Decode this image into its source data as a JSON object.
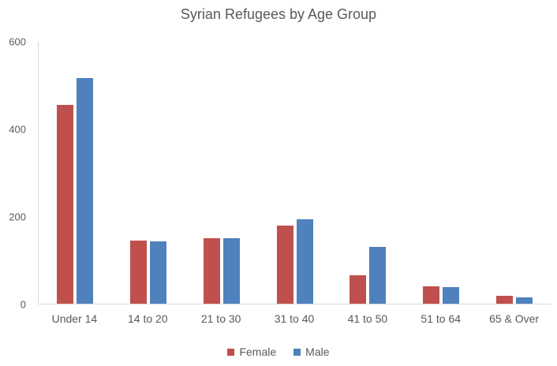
{
  "chart_data": {
    "type": "bar",
    "title": "Syrian Refugees by Age Group",
    "categories": [
      "Under 14",
      "14 to 20",
      "21 to 30",
      "31 to 40",
      "41 to 50",
      "51 to 64",
      "65 & Over"
    ],
    "series": [
      {
        "name": "Female",
        "color": "#C0504D",
        "values": [
          455,
          145,
          150,
          178,
          65,
          40,
          18
        ]
      },
      {
        "name": "Male",
        "color": "#4F81BD",
        "values": [
          515,
          142,
          150,
          193,
          130,
          38,
          14
        ]
      }
    ],
    "xlabel": "",
    "ylabel": "",
    "ylim": [
      0,
      600
    ],
    "yticks": [
      0,
      200,
      400,
      600
    ],
    "grid": false,
    "legend_position": "bottom",
    "text_color": "#595959",
    "axis_line_color": "#D9D9D9"
  }
}
